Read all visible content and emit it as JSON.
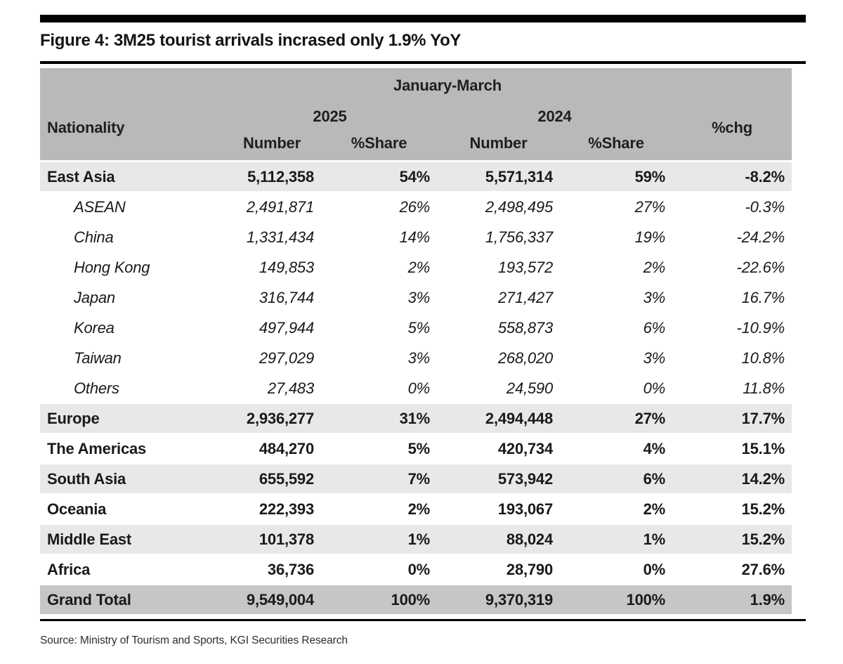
{
  "figure": {
    "title": "Figure 4: 3M25 tourist arrivals incrased only 1.9% YoY",
    "source": "Source: Ministry of Tourism and Sports, KGI Securities Research"
  },
  "chart_data": {
    "type": "table",
    "title": "Figure 4: 3M25 tourist arrivals incrased only 1.9% YoY",
    "period_header": "January-March",
    "year_headers": {
      "y2025": "2025",
      "y2024": "2024"
    },
    "columns": {
      "nationality": "Nationality",
      "number_2025": "Number",
      "share_2025": "%Share",
      "number_2024": "Number",
      "share_2024": "%Share",
      "pct_chg": "%chg"
    },
    "rows": [
      {
        "name": "East Asia",
        "style": "region",
        "shaded": true,
        "number_2025": "5,112,358",
        "share_2025": "54%",
        "number_2024": "5,571,314",
        "share_2024": "59%",
        "pct_chg": "-8.2%"
      },
      {
        "name": "ASEAN",
        "style": "sub",
        "shaded": false,
        "number_2025": "2,491,871",
        "share_2025": "26%",
        "number_2024": "2,498,495",
        "share_2024": "27%",
        "pct_chg": "-0.3%"
      },
      {
        "name": "China",
        "style": "sub",
        "shaded": false,
        "number_2025": "1,331,434",
        "share_2025": "14%",
        "number_2024": "1,756,337",
        "share_2024": "19%",
        "pct_chg": "-24.2%"
      },
      {
        "name": "Hong Kong",
        "style": "sub",
        "shaded": false,
        "number_2025": "149,853",
        "share_2025": "2%",
        "number_2024": "193,572",
        "share_2024": "2%",
        "pct_chg": "-22.6%"
      },
      {
        "name": "Japan",
        "style": "sub",
        "shaded": false,
        "number_2025": "316,744",
        "share_2025": "3%",
        "number_2024": "271,427",
        "share_2024": "3%",
        "pct_chg": "16.7%"
      },
      {
        "name": "Korea",
        "style": "sub",
        "shaded": false,
        "number_2025": "497,944",
        "share_2025": "5%",
        "number_2024": "558,873",
        "share_2024": "6%",
        "pct_chg": "-10.9%"
      },
      {
        "name": "Taiwan",
        "style": "sub",
        "shaded": false,
        "number_2025": "297,029",
        "share_2025": "3%",
        "number_2024": "268,020",
        "share_2024": "3%",
        "pct_chg": "10.8%"
      },
      {
        "name": "Others",
        "style": "sub",
        "shaded": false,
        "number_2025": "27,483",
        "share_2025": "0%",
        "number_2024": "24,590",
        "share_2024": "0%",
        "pct_chg": "11.8%"
      },
      {
        "name": "Europe",
        "style": "region",
        "shaded": true,
        "number_2025": "2,936,277",
        "share_2025": "31%",
        "number_2024": "2,494,448",
        "share_2024": "27%",
        "pct_chg": "17.7%"
      },
      {
        "name": "The Americas",
        "style": "region",
        "shaded": false,
        "number_2025": "484,270",
        "share_2025": "5%",
        "number_2024": "420,734",
        "share_2024": "4%",
        "pct_chg": "15.1%"
      },
      {
        "name": "South Asia",
        "style": "region",
        "shaded": true,
        "number_2025": "655,592",
        "share_2025": "7%",
        "number_2024": "573,942",
        "share_2024": "6%",
        "pct_chg": "14.2%"
      },
      {
        "name": "Oceania",
        "style": "region",
        "shaded": false,
        "number_2025": "222,393",
        "share_2025": "2%",
        "number_2024": "193,067",
        "share_2024": "2%",
        "pct_chg": "15.2%"
      },
      {
        "name": "Middle East",
        "style": "region",
        "shaded": true,
        "number_2025": "101,378",
        "share_2025": "1%",
        "number_2024": "88,024",
        "share_2024": "1%",
        "pct_chg": "15.2%"
      },
      {
        "name": "Africa",
        "style": "region",
        "shaded": false,
        "number_2025": "36,736",
        "share_2025": "0%",
        "number_2024": "28,790",
        "share_2024": "0%",
        "pct_chg": "27.6%"
      },
      {
        "name": "Grand Total",
        "style": "total",
        "shaded": false,
        "number_2025": "9,549,004",
        "share_2025": "100%",
        "number_2024": "9,370,319",
        "share_2024": "100%",
        "pct_chg": "1.9%"
      }
    ]
  },
  "colors": {
    "text": "#1a1a1a",
    "rule": "#000000",
    "header_bg": "#b9b9b9",
    "band_bg": "#e8e8e8",
    "total_bg": "#c6c6c6"
  }
}
